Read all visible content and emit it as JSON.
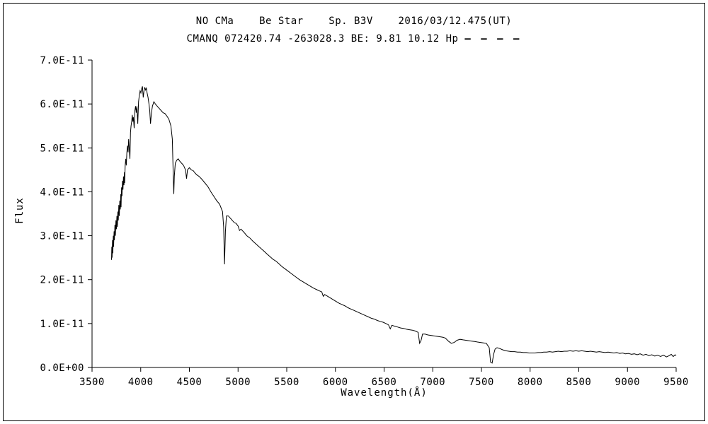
{
  "header": {
    "line1": "NO CMa    Be Star    Sp. B3V    2016/03/12.475(UT)",
    "line2": "CMANQ 072420.74 -263028.3 BE: 9.81 10.12 Hp ",
    "dash_marker": "– – – –"
  },
  "chart_data": {
    "type": "line",
    "title": "NO CMa Be Star Sp. B3V 2016/03/12.475(UT)",
    "subtitle": "CMANQ 072420.74 -263028.3 BE: 9.81 10.12 Hp - - - -",
    "xlabel": "Wavelength(Å)",
    "ylabel": "Flux",
    "xlim": [
      3500,
      9500
    ],
    "ylim": [
      0,
      7
    ],
    "y_scale_note": "flux values in units of 1E-11",
    "grid": false,
    "legend": "none",
    "line_color": "#000000",
    "x_ticks": {
      "values": [
        3500,
        4000,
        4500,
        5000,
        5500,
        6000,
        6500,
        7000,
        7500,
        8000,
        8500,
        9000,
        9500
      ],
      "labels": [
        "3500",
        "4000",
        "4500",
        "5000",
        "5500",
        "6000",
        "6500",
        "7000",
        "7500",
        "8000",
        "8500",
        "9000",
        "9500"
      ]
    },
    "y_ticks": {
      "values": [
        0,
        1,
        2,
        3,
        4,
        5,
        6,
        7
      ],
      "labels": [
        "0.0E+00",
        "1.0E-11",
        "2.0E-11",
        "3.0E-11",
        "4.0E-11",
        "5.0E-11",
        "6.0E-11",
        "7.0E-11"
      ]
    },
    "series": [
      {
        "name": "spectrum",
        "color": "#000000",
        "points": [
          [
            3700,
            2.45
          ],
          [
            3703,
            2.75
          ],
          [
            3706,
            2.5
          ],
          [
            3710,
            2.9
          ],
          [
            3714,
            2.6
          ],
          [
            3718,
            3.0
          ],
          [
            3722,
            2.75
          ],
          [
            3726,
            3.1
          ],
          [
            3730,
            2.9
          ],
          [
            3735,
            3.25
          ],
          [
            3740,
            3.0
          ],
          [
            3745,
            3.35
          ],
          [
            3750,
            3.15
          ],
          [
            3755,
            3.45
          ],
          [
            3760,
            3.2
          ],
          [
            3765,
            3.55
          ],
          [
            3770,
            3.35
          ],
          [
            3775,
            3.7
          ],
          [
            3780,
            3.45
          ],
          [
            3785,
            3.8
          ],
          [
            3790,
            3.6
          ],
          [
            3795,
            3.95
          ],
          [
            3798,
            3.65
          ],
          [
            3803,
            4.1
          ],
          [
            3808,
            3.9
          ],
          [
            3813,
            4.25
          ],
          [
            3818,
            4.05
          ],
          [
            3823,
            4.35
          ],
          [
            3828,
            4.15
          ],
          [
            3833,
            4.45
          ],
          [
            3835,
            4.2
          ],
          [
            3840,
            4.6
          ],
          [
            3846,
            4.75
          ],
          [
            3852,
            4.6
          ],
          [
            3858,
            4.9
          ],
          [
            3864,
            5.05
          ],
          [
            3870,
            4.9
          ],
          [
            3876,
            5.2
          ],
          [
            3882,
            5.0
          ],
          [
            3889,
            4.75
          ],
          [
            3895,
            5.35
          ],
          [
            3901,
            5.5
          ],
          [
            3907,
            5.6
          ],
          [
            3913,
            5.75
          ],
          [
            3919,
            5.6
          ],
          [
            3925,
            5.7
          ],
          [
            3933,
            5.45
          ],
          [
            3940,
            5.85
          ],
          [
            3947,
            5.95
          ],
          [
            3954,
            5.8
          ],
          [
            3961,
            5.95
          ],
          [
            3970,
            5.55
          ],
          [
            3978,
            6.05
          ],
          [
            3986,
            6.2
          ],
          [
            3994,
            6.3
          ],
          [
            4002,
            6.25
          ],
          [
            4010,
            6.35
          ],
          [
            4018,
            6.4
          ],
          [
            4026,
            6.15
          ],
          [
            4034,
            6.3
          ],
          [
            4042,
            6.38
          ],
          [
            4050,
            6.32
          ],
          [
            4058,
            6.36
          ],
          [
            4066,
            6.25
          ],
          [
            4075,
            6.15
          ],
          [
            4085,
            6.0
          ],
          [
            4093,
            5.85
          ],
          [
            4101,
            5.55
          ],
          [
            4110,
            5.8
          ],
          [
            4120,
            5.95
          ],
          [
            4135,
            6.05
          ],
          [
            4150,
            6.0
          ],
          [
            4170,
            5.95
          ],
          [
            4190,
            5.9
          ],
          [
            4210,
            5.85
          ],
          [
            4230,
            5.8
          ],
          [
            4250,
            5.78
          ],
          [
            4270,
            5.72
          ],
          [
            4290,
            5.65
          ],
          [
            4310,
            5.5
          ],
          [
            4325,
            5.2
          ],
          [
            4335,
            4.3
          ],
          [
            4340,
            3.95
          ],
          [
            4345,
            4.35
          ],
          [
            4355,
            4.65
          ],
          [
            4370,
            4.72
          ],
          [
            4385,
            4.75
          ],
          [
            4400,
            4.7
          ],
          [
            4420,
            4.65
          ],
          [
            4440,
            4.6
          ],
          [
            4460,
            4.5
          ],
          [
            4471,
            4.3
          ],
          [
            4480,
            4.5
          ],
          [
            4500,
            4.55
          ],
          [
            4520,
            4.5
          ],
          [
            4540,
            4.48
          ],
          [
            4560,
            4.42
          ],
          [
            4580,
            4.38
          ],
          [
            4600,
            4.35
          ],
          [
            4630,
            4.28
          ],
          [
            4660,
            4.2
          ],
          [
            4690,
            4.12
          ],
          [
            4720,
            4.0
          ],
          [
            4750,
            3.9
          ],
          [
            4780,
            3.8
          ],
          [
            4810,
            3.72
          ],
          [
            4840,
            3.55
          ],
          [
            4852,
            3.2
          ],
          [
            4861,
            2.35
          ],
          [
            4870,
            3.1
          ],
          [
            4880,
            3.45
          ],
          [
            4900,
            3.45
          ],
          [
            4920,
            3.4
          ],
          [
            4940,
            3.35
          ],
          [
            4960,
            3.3
          ],
          [
            4980,
            3.28
          ],
          [
            5000,
            3.22
          ],
          [
            5015,
            3.12
          ],
          [
            5030,
            3.15
          ],
          [
            5060,
            3.08
          ],
          [
            5090,
            3.0
          ],
          [
            5120,
            2.95
          ],
          [
            5150,
            2.88
          ],
          [
            5180,
            2.82
          ],
          [
            5210,
            2.76
          ],
          [
            5240,
            2.7
          ],
          [
            5270,
            2.64
          ],
          [
            5300,
            2.58
          ],
          [
            5330,
            2.52
          ],
          [
            5360,
            2.46
          ],
          [
            5390,
            2.42
          ],
          [
            5420,
            2.36
          ],
          [
            5450,
            2.3
          ],
          [
            5480,
            2.25
          ],
          [
            5510,
            2.2
          ],
          [
            5540,
            2.15
          ],
          [
            5570,
            2.1
          ],
          [
            5600,
            2.05
          ],
          [
            5630,
            2.0
          ],
          [
            5660,
            1.96
          ],
          [
            5690,
            1.92
          ],
          [
            5720,
            1.88
          ],
          [
            5750,
            1.84
          ],
          [
            5780,
            1.8
          ],
          [
            5810,
            1.77
          ],
          [
            5840,
            1.74
          ],
          [
            5860,
            1.72
          ],
          [
            5875,
            1.62
          ],
          [
            5890,
            1.66
          ],
          [
            5920,
            1.62
          ],
          [
            5950,
            1.58
          ],
          [
            5980,
            1.54
          ],
          [
            6010,
            1.5
          ],
          [
            6040,
            1.46
          ],
          [
            6070,
            1.43
          ],
          [
            6100,
            1.4
          ],
          [
            6130,
            1.36
          ],
          [
            6160,
            1.33
          ],
          [
            6190,
            1.3
          ],
          [
            6220,
            1.27
          ],
          [
            6250,
            1.24
          ],
          [
            6280,
            1.21
          ],
          [
            6310,
            1.18
          ],
          [
            6340,
            1.15
          ],
          [
            6370,
            1.12
          ],
          [
            6400,
            1.1
          ],
          [
            6430,
            1.07
          ],
          [
            6460,
            1.05
          ],
          [
            6490,
            1.03
          ],
          [
            6520,
            1.0
          ],
          [
            6545,
            0.97
          ],
          [
            6563,
            0.88
          ],
          [
            6580,
            0.96
          ],
          [
            6610,
            0.94
          ],
          [
            6640,
            0.92
          ],
          [
            6670,
            0.9
          ],
          [
            6700,
            0.89
          ],
          [
            6730,
            0.87
          ],
          [
            6760,
            0.86
          ],
          [
            6790,
            0.85
          ],
          [
            6820,
            0.83
          ],
          [
            6850,
            0.8
          ],
          [
            6865,
            0.55
          ],
          [
            6880,
            0.62
          ],
          [
            6895,
            0.76
          ],
          [
            6920,
            0.76
          ],
          [
            6950,
            0.74
          ],
          [
            6980,
            0.73
          ],
          [
            7010,
            0.72
          ],
          [
            7040,
            0.71
          ],
          [
            7070,
            0.7
          ],
          [
            7100,
            0.69
          ],
          [
            7130,
            0.67
          ],
          [
            7160,
            0.6
          ],
          [
            7190,
            0.55
          ],
          [
            7220,
            0.57
          ],
          [
            7250,
            0.62
          ],
          [
            7280,
            0.64
          ],
          [
            7310,
            0.63
          ],
          [
            7340,
            0.62
          ],
          [
            7370,
            0.61
          ],
          [
            7400,
            0.6
          ],
          [
            7430,
            0.59
          ],
          [
            7460,
            0.58
          ],
          [
            7490,
            0.57
          ],
          [
            7520,
            0.56
          ],
          [
            7550,
            0.55
          ],
          [
            7580,
            0.45
          ],
          [
            7594,
            0.12
          ],
          [
            7610,
            0.1
          ],
          [
            7625,
            0.3
          ],
          [
            7640,
            0.42
          ],
          [
            7660,
            0.45
          ],
          [
            7690,
            0.43
          ],
          [
            7720,
            0.4
          ],
          [
            7750,
            0.38
          ],
          [
            7780,
            0.37
          ],
          [
            7810,
            0.36
          ],
          [
            7840,
            0.36
          ],
          [
            7870,
            0.35
          ],
          [
            7900,
            0.35
          ],
          [
            7930,
            0.34
          ],
          [
            7960,
            0.34
          ],
          [
            7990,
            0.33
          ],
          [
            8020,
            0.33
          ],
          [
            8050,
            0.33
          ],
          [
            8080,
            0.34
          ],
          [
            8110,
            0.34
          ],
          [
            8140,
            0.35
          ],
          [
            8170,
            0.35
          ],
          [
            8200,
            0.36
          ],
          [
            8230,
            0.35
          ],
          [
            8260,
            0.36
          ],
          [
            8290,
            0.37
          ],
          [
            8320,
            0.36
          ],
          [
            8350,
            0.37
          ],
          [
            8380,
            0.37
          ],
          [
            8410,
            0.38
          ],
          [
            8440,
            0.37
          ],
          [
            8470,
            0.38
          ],
          [
            8500,
            0.37
          ],
          [
            8530,
            0.38
          ],
          [
            8560,
            0.37
          ],
          [
            8590,
            0.36
          ],
          [
            8620,
            0.37
          ],
          [
            8650,
            0.36
          ],
          [
            8680,
            0.35
          ],
          [
            8710,
            0.36
          ],
          [
            8740,
            0.35
          ],
          [
            8770,
            0.34
          ],
          [
            8800,
            0.35
          ],
          [
            8830,
            0.34
          ],
          [
            8860,
            0.33
          ],
          [
            8890,
            0.34
          ],
          [
            8920,
            0.32
          ],
          [
            8950,
            0.33
          ],
          [
            8980,
            0.31
          ],
          [
            9010,
            0.32
          ],
          [
            9040,
            0.3
          ],
          [
            9070,
            0.31
          ],
          [
            9100,
            0.29
          ],
          [
            9130,
            0.31
          ],
          [
            9160,
            0.28
          ],
          [
            9190,
            0.3
          ],
          [
            9220,
            0.27
          ],
          [
            9250,
            0.29
          ],
          [
            9280,
            0.26
          ],
          [
            9310,
            0.28
          ],
          [
            9340,
            0.25
          ],
          [
            9370,
            0.28
          ],
          [
            9400,
            0.24
          ],
          [
            9430,
            0.27
          ],
          [
            9450,
            0.3
          ],
          [
            9470,
            0.25
          ],
          [
            9490,
            0.29
          ],
          [
            9500,
            0.27
          ]
        ]
      }
    ]
  }
}
